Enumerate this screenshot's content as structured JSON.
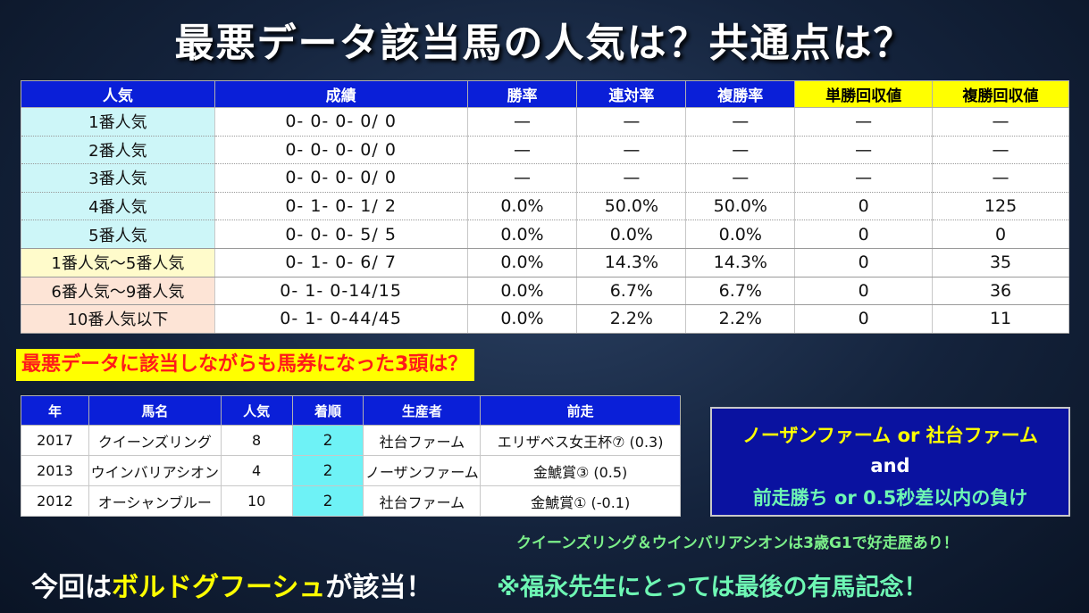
{
  "title": "最悪データ該当馬の人気は？共通点は？",
  "main_table": {
    "headers": [
      "人気",
      "成績",
      "勝率",
      "連対率",
      "複勝率",
      "単勝回収値",
      "複勝回収値"
    ],
    "rows": [
      [
        "1番人気",
        "0- 0- 0- 0/ 0",
        "—",
        "—",
        "—",
        "—",
        "—"
      ],
      [
        "2番人気",
        "0- 0- 0- 0/ 0",
        "—",
        "—",
        "—",
        "—",
        "—"
      ],
      [
        "3番人気",
        "0- 0- 0- 0/ 0",
        "—",
        "—",
        "—",
        "—",
        "—"
      ],
      [
        "4番人気",
        "0- 1- 0- 1/ 2",
        "0.0%",
        "50.0%",
        "50.0%",
        "0",
        "125"
      ],
      [
        "5番人気",
        "0- 0- 0- 5/ 5",
        "0.0%",
        "0.0%",
        "0.0%",
        "0",
        "0"
      ],
      [
        "1番人気～5番人気",
        "0- 1- 0- 6/ 7",
        "0.0%",
        "14.3%",
        "14.3%",
        "0",
        "35"
      ],
      [
        "6番人気～9番人気",
        "0- 1- 0-14/15",
        "0.0%",
        "6.7%",
        "6.7%",
        "0",
        "36"
      ],
      [
        "10番人気以下",
        "0- 1- 0-44/45",
        "0.0%",
        "2.2%",
        "2.2%",
        "0",
        "11"
      ]
    ]
  },
  "sub_heading": "最悪データに該当しながらも馬券になった3頭は？",
  "sub_table": {
    "headers": [
      "年",
      "馬名",
      "人気",
      "着順",
      "生産者",
      "前走"
    ],
    "rows": [
      [
        "2017",
        "クイーンズリング",
        "8",
        "2",
        "社台ファーム",
        "エリザベス女王杯⑦ (0.3)"
      ],
      [
        "2013",
        "ウインバリアシオン",
        "4",
        "2",
        "ノーザンファーム",
        "金鯱賞③ (0.5)"
      ],
      [
        "2012",
        "オーシャンブルー",
        "10",
        "2",
        "社台ファーム",
        "金鯱賞① (-0.1)"
      ]
    ]
  },
  "info_box": {
    "line1": "ノーザンファーム or 社台ファーム",
    "line2": "and",
    "line3": "前走勝ち or 0.5秒差以内の負け"
  },
  "note": "クイーンズリング＆ウインバリアシオンは3歳G1で好走歴あり！",
  "bottom_left": {
    "prefix": "今回は",
    "highlight": "ボルドグフーシュ",
    "suffix": "が該当！"
  },
  "bottom_right": "※福永先生にとっては最後の有馬記念！",
  "colors": {
    "header_blue": "#0a1fd8",
    "header_yellow": "#ffff00",
    "popularity_cyan": "#cdf6f8",
    "popularity_yellow": "#fffbcb",
    "popularity_peach": "#fde4d6",
    "finish_cyan": "#6ef2f6",
    "accent_green": "#6ef7b4"
  }
}
